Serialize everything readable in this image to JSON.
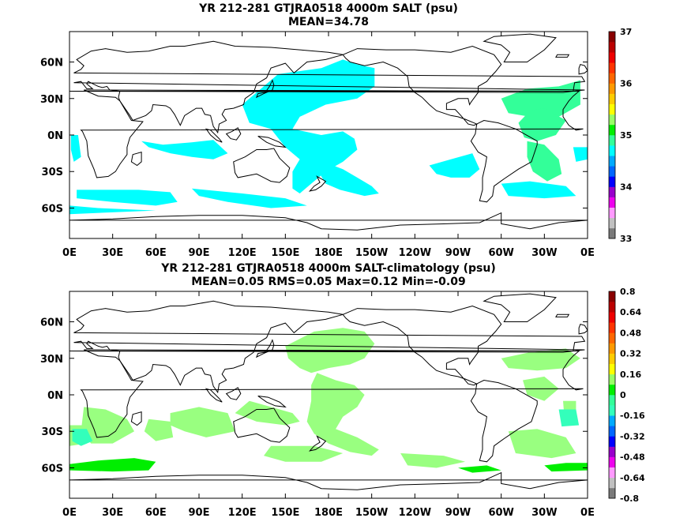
{
  "colors": {
    "ocean": "#ffffff",
    "land_outline": "#000000",
    "abs_34_5_35": "#00ffff",
    "abs_35_35_2": "#33ff99",
    "anom_0_008": "#99ff80",
    "anom_008_016": "#00ee00",
    "anom_neg_016_0": "#33ffbb"
  },
  "chart_data": [
    {
      "type": "heatmap",
      "title_line1": "YR 212-281 GTJRA0518 4000m SALT (psu)",
      "title_line2": "MEAN=34.78",
      "xlabel": "",
      "ylabel": "",
      "x_ticks": [
        "0E",
        "30E",
        "60E",
        "90E",
        "120E",
        "150E",
        "180E",
        "150W",
        "120W",
        "90W",
        "60W",
        "30W",
        "0E"
      ],
      "x_tick_lon": [
        0,
        30,
        60,
        90,
        120,
        150,
        180,
        210,
        240,
        270,
        300,
        330,
        360
      ],
      "y_ticks": [
        "60N",
        "30N",
        "0N",
        "30S",
        "60S"
      ],
      "y_tick_lat": [
        60,
        30,
        0,
        -30,
        -60
      ],
      "xlim": [
        0,
        360
      ],
      "ylim": [
        -85,
        85
      ],
      "colorbar": {
        "labels": [
          "37",
          "36",
          "35",
          "34",
          "33"
        ],
        "label_values": [
          37,
          36,
          35,
          34,
          33
        ],
        "range": [
          33,
          37
        ],
        "colors": [
          "#7a7a7a",
          "#c0c0c0",
          "#ff99ff",
          "#ee00ee",
          "#9900cc",
          "#0000ff",
          "#0066ff",
          "#00aaff",
          "#00ffff",
          "#33ff99",
          "#00ee00",
          "#99ff66",
          "#ffff00",
          "#ffcc00",
          "#ff9900",
          "#ff6600",
          "#ff3300",
          "#ee0000",
          "#bb0000",
          "#880000"
        ]
      }
    },
    {
      "type": "heatmap",
      "title_line1": "YR 212-281 GTJRA0518 4000m SALT-climatology (psu)",
      "title_line2": "MEAN=0.05   RMS=0.05   Max=0.12   Min=-0.09",
      "xlabel": "",
      "ylabel": "",
      "x_ticks": [
        "0E",
        "30E",
        "60E",
        "90E",
        "120E",
        "150E",
        "180E",
        "150W",
        "120W",
        "90W",
        "60W",
        "30W",
        "0E"
      ],
      "x_tick_lon": [
        0,
        30,
        60,
        90,
        120,
        150,
        180,
        210,
        240,
        270,
        300,
        330,
        360
      ],
      "y_ticks": [
        "60N",
        "30N",
        "0N",
        "30S",
        "60S"
      ],
      "y_tick_lat": [
        60,
        30,
        0,
        -30,
        -60
      ],
      "xlim": [
        0,
        360
      ],
      "ylim": [
        -85,
        85
      ],
      "colorbar": {
        "labels": [
          "0.8",
          "0.64",
          "0.48",
          "0.32",
          "0.16",
          "0",
          "-0.16",
          "-0.32",
          "-0.48",
          "-0.64",
          "-0.8"
        ],
        "label_values": [
          0.8,
          0.64,
          0.48,
          0.32,
          0.16,
          0,
          -0.16,
          -0.32,
          -0.48,
          -0.64,
          -0.8
        ],
        "range": [
          -0.8,
          0.8
        ],
        "colors": [
          "#7a7a7a",
          "#c0c0c0",
          "#ff99ff",
          "#ee00ee",
          "#9900cc",
          "#0000ff",
          "#0066ff",
          "#00aaff",
          "#33ffbb",
          "#33ff99",
          "#00ee00",
          "#99ff66",
          "#ffff00",
          "#ffcc00",
          "#ff9900",
          "#ff6600",
          "#ff3300",
          "#ee0000",
          "#bb0000",
          "#880000"
        ]
      }
    }
  ]
}
